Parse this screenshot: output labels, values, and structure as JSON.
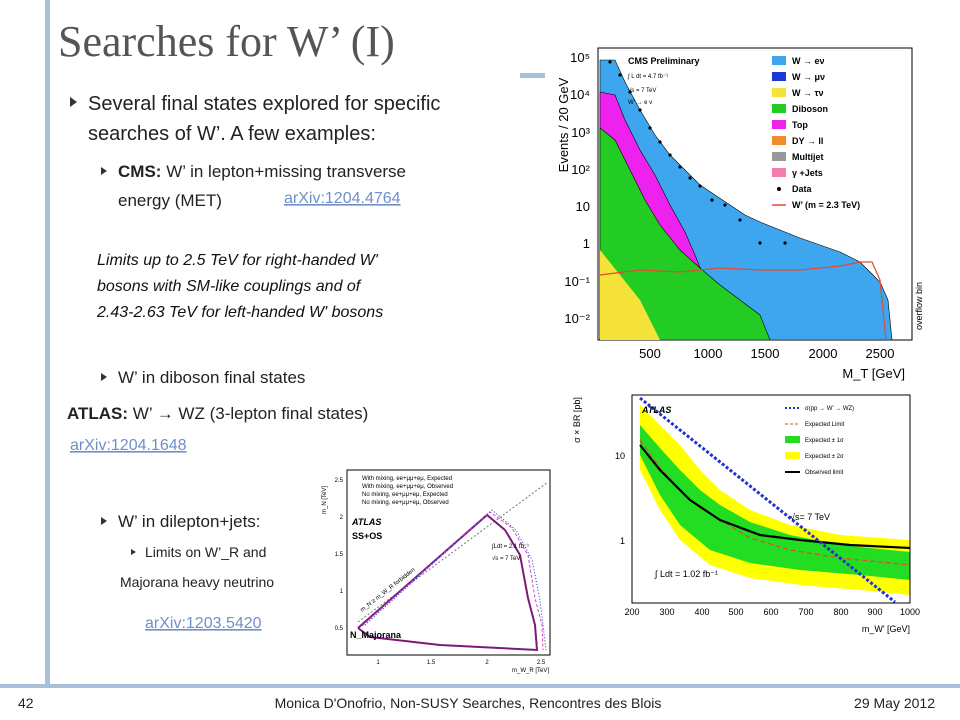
{
  "title": "Searches for W’ (I)",
  "bullets": {
    "b1_line1": "Several final states explored for specific",
    "b1_line2": "searches of W’. A few examples:",
    "cms_label": "CMS:",
    "cms_line1": "W’ in lepton+missing transverse",
    "cms_line2": "energy (MET)",
    "cms_link": "arXiv:1204.4764",
    "cms_note": [
      "Limits up to 2.5 TeV for right-handed W'",
      "bosons with SM-like couplings and of",
      "2.43-2.63 TeV for left-handed W' bosons"
    ],
    "diboson": "W’ in diboson final states",
    "atlas_label": "ATLAS:",
    "atlas_text": "W’ → WZ (3-lepton final states)",
    "atlas_link": "arXiv:1204.1648",
    "dilepton": "W’  in dilepton+jets:",
    "dilepton_sub": "Limits on W’_R and",
    "majorana": "Majorana heavy neutrino",
    "dilepton_link": "arXiv:1203.5420"
  },
  "footer": {
    "page": "42",
    "center": "Monica D'Onofrio, Non-SUSY Searches, Rencontres des Blois",
    "date": "29 May 2012"
  },
  "cms_plot": {
    "label": "CMS Preliminary",
    "lumi": "∫ L dt = 4.7 fb⁻¹",
    "energy": "√s = 7 TeV",
    "channel": "W’ → e ν",
    "legend": [
      "W → eν",
      "W → μν",
      "W → τν",
      "Diboson",
      "Top",
      "DY → ll",
      "Multijet",
      "γ +Jets",
      "Data",
      "W’ (m = 2.3 TeV)"
    ],
    "y_title": "Events / 20 GeV",
    "x_title": "M_T [GeV]",
    "yticks": [
      "10⁵",
      "10⁴",
      "10³",
      "10²",
      "10",
      "1",
      "10⁻¹",
      "10⁻²"
    ],
    "xticks": [
      "500",
      "1000",
      "1500",
      "2000",
      "2500"
    ],
    "overflow": "overflow bin"
  },
  "atlas_plot": {
    "label": "ATLAS",
    "legend": [
      "σ(pp → W’ → WZ)",
      "Expected Limit",
      "Expected ± 1σ",
      "Expected ± 2σ",
      "Observed limit"
    ],
    "energy": "√s= 7 TeV",
    "lumi": "∫ Ldt = 1.02 fb⁻¹",
    "y_title": "σ × BR [pb]",
    "x_title": "m_W’ [GeV]",
    "yticks": [
      "10",
      "1"
    ],
    "xticks": [
      "200",
      "300",
      "400",
      "500",
      "600",
      "700",
      "800",
      "900",
      "1000"
    ]
  },
  "mn_plot": {
    "legend": [
      "With mixing, ee+μμ+eμ, Expected",
      "With mixing, ee+μμ+eμ, Observed",
      "No mixing, ee+μμ+eμ, Expected",
      "No mixing, ee+μμ+eμ, Observed"
    ],
    "label": "ATLAS",
    "selection": "SS+OS",
    "lumi": "∫Ldt = 2.1 fb⁻¹",
    "energy": "√s = 7 TeV",
    "forbidden": "m_N ≥ m_W_R forbidden",
    "particle": "N_Majorana",
    "y_title": "m_N [TeV]",
    "x_title": "m_W_R [TeV]",
    "yticks": [
      "0.5",
      "1",
      "1.5",
      "2",
      "2.5"
    ],
    "xticks": [
      "1",
      "1.5",
      "2",
      "2.5"
    ]
  }
}
